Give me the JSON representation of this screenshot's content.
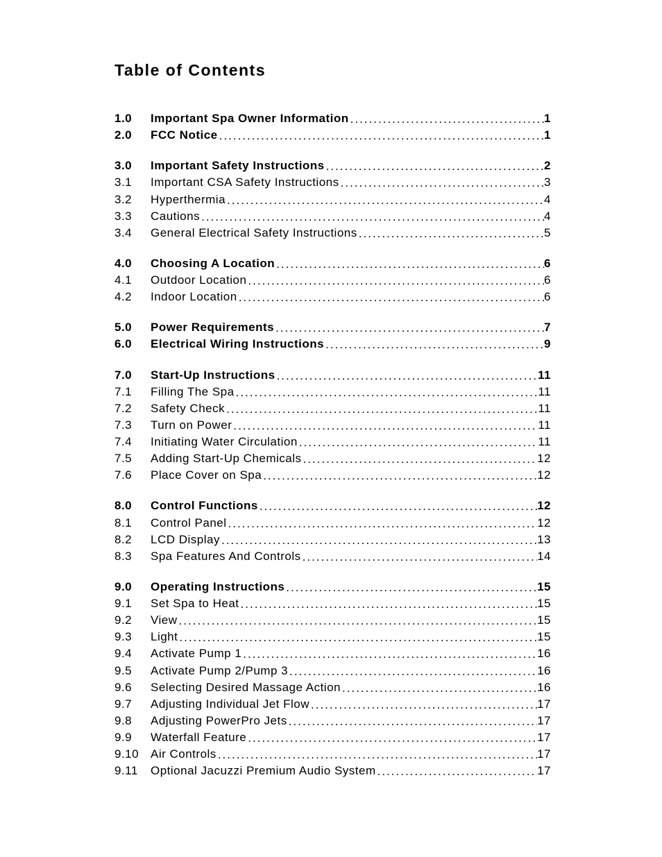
{
  "title": "Table of Contents",
  "groups": [
    {
      "rows": [
        {
          "num": "1.0",
          "label": "Important Spa Owner Information",
          "page": "1",
          "major": true
        },
        {
          "num": "2.0",
          "label": "FCC Notice",
          "page": "1",
          "major": true
        }
      ]
    },
    {
      "rows": [
        {
          "num": "3.0",
          "label": "Important Safety Instructions",
          "page": "2",
          "major": true
        },
        {
          "num": "3.1",
          "label": "Important CSA Safety Instructions",
          "page": "3",
          "major": false
        },
        {
          "num": "3.2",
          "label": "Hyperthermia",
          "page": "4",
          "major": false
        },
        {
          "num": "3.3",
          "label": "Cautions",
          "page": "4",
          "major": false
        },
        {
          "num": "3.4",
          "label": "General Electrical Safety Instructions",
          "page": "5",
          "major": false
        }
      ]
    },
    {
      "rows": [
        {
          "num": "4.0",
          "label": "Choosing A Location",
          "page": "6",
          "major": true
        },
        {
          "num": "4.1",
          "label": "Outdoor Location",
          "page": "6",
          "major": false
        },
        {
          "num": "4.2",
          "label": "Indoor Location",
          "page": "6",
          "major": false
        }
      ]
    },
    {
      "rows": [
        {
          "num": "5.0",
          "label": "Power Requirements",
          "page": "7",
          "major": true
        },
        {
          "num": "6.0",
          "label": "Electrical Wiring Instructions",
          "page": "9",
          "major": true
        }
      ]
    },
    {
      "rows": [
        {
          "num": "7.0",
          "label": "Start-Up Instructions",
          "page": "11",
          "major": true
        },
        {
          "num": "7.1",
          "label": "Filling The Spa",
          "page": "11",
          "major": false
        },
        {
          "num": "7.2",
          "label": "Safety Check",
          "page": "11",
          "major": false
        },
        {
          "num": "7.3",
          "label": "Turn on Power",
          "page": "11",
          "major": false
        },
        {
          "num": "7.4",
          "label": "Initiating Water Circulation",
          "page": "11",
          "major": false
        },
        {
          "num": "7.5",
          "label": "Adding Start-Up Chemicals",
          "page": "12",
          "major": false
        },
        {
          "num": "7.6",
          "label": "Place Cover on Spa",
          "page": "12",
          "major": false
        }
      ]
    },
    {
      "rows": [
        {
          "num": "8.0",
          "label": "Control Functions",
          "page": "12",
          "major": true
        },
        {
          "num": "8.1",
          "label": "Control Panel",
          "page": "12",
          "major": false
        },
        {
          "num": "8.2",
          "label": "LCD Display",
          "page": "13",
          "major": false
        },
        {
          "num": "8.3",
          "label": "Spa Features And Controls",
          "page": "14",
          "major": false
        }
      ]
    },
    {
      "rows": [
        {
          "num": "9.0",
          "label": "Operating Instructions",
          "page": "15",
          "major": true
        },
        {
          "num": "9.1",
          "label": "Set Spa to Heat",
          "page": "15",
          "major": false
        },
        {
          "num": "9.2",
          "label": "View",
          "page": "15",
          "major": false
        },
        {
          "num": "9.3",
          "label": "Light",
          "page": "15",
          "major": false
        },
        {
          "num": "9.4",
          "label": "Activate Pump 1",
          "page": "16",
          "major": false
        },
        {
          "num": "9.5",
          "label": "Activate Pump 2/Pump 3",
          "page": "16",
          "major": false
        },
        {
          "num": "9.6",
          "label": "Selecting Desired Massage Action",
          "page": "16",
          "major": false
        },
        {
          "num": "9.7",
          "label": "Adjusting Individual Jet Flow",
          "page": "17",
          "major": false
        },
        {
          "num": "9.8",
          "label": "Adjusting PowerPro Jets",
          "page": "17",
          "major": false
        },
        {
          "num": "9.9",
          "label": "Waterfall Feature",
          "page": "17",
          "major": false
        },
        {
          "num": "9.10",
          "label": "Air Controls",
          "page": "17",
          "major": false
        },
        {
          "num": "9.11",
          "label": "Optional Jacuzzi Premium Audio System",
          "page": "17",
          "major": false
        }
      ]
    }
  ]
}
